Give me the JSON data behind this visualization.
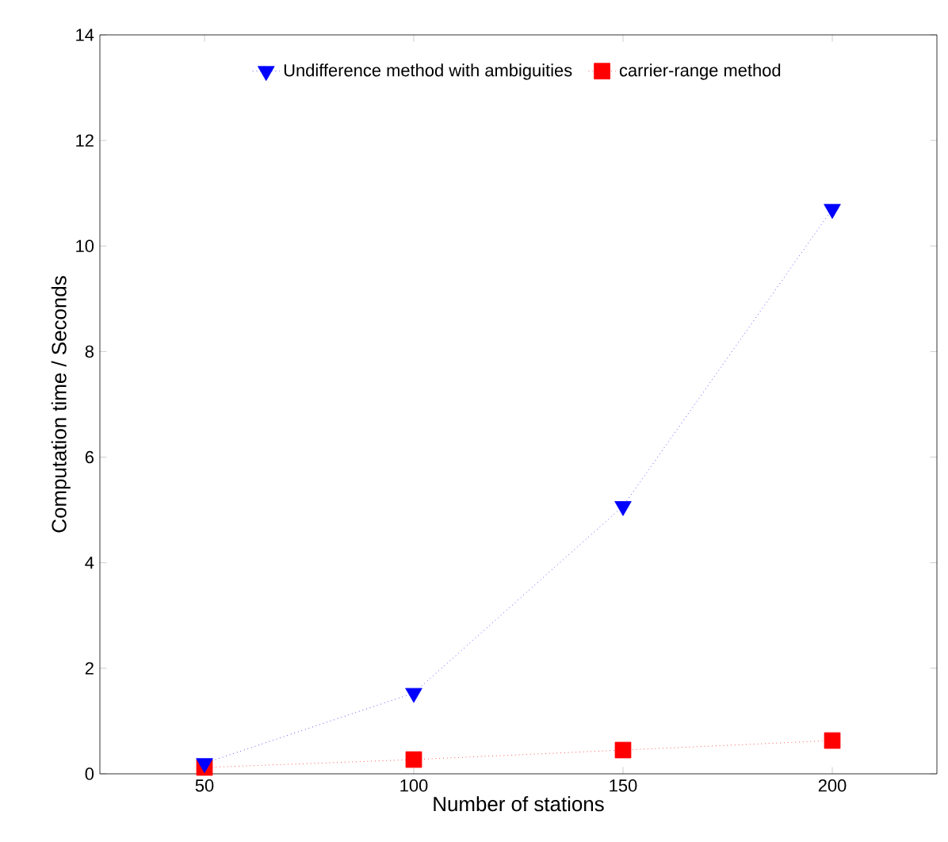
{
  "chart_data": {
    "type": "line",
    "xlabel": "Number of stations",
    "ylabel": "Computation time / Seconds",
    "x": [
      50,
      100,
      150,
      200
    ],
    "series": [
      {
        "name": "Undifference method with ambiguities",
        "color": "#0000ff",
        "marker": "triangle",
        "values": [
          0.2,
          1.53,
          5.07,
          10.7
        ]
      },
      {
        "name": "carrier-range method",
        "color": "#ff0000",
        "marker": "square",
        "values": [
          0.12,
          0.27,
          0.45,
          0.63
        ]
      }
    ],
    "xlim": [
      25,
      225
    ],
    "xticks": [
      50,
      100,
      150,
      200
    ],
    "ylim": [
      0,
      14
    ],
    "yticks": [
      0,
      2,
      4,
      6,
      8,
      10,
      12,
      14
    ],
    "line_style": "dotted",
    "legend": "top",
    "grid": false
  }
}
